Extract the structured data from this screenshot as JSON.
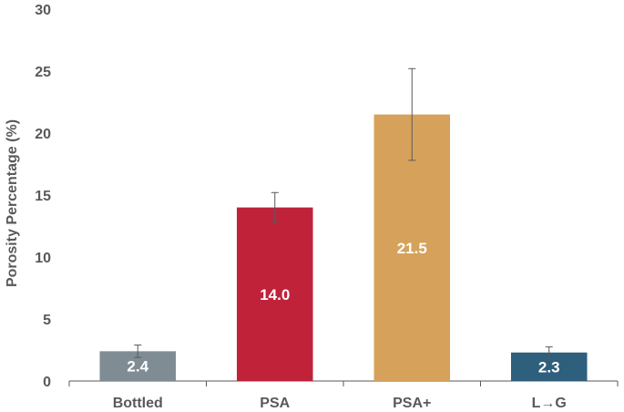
{
  "chart_data": {
    "type": "bar",
    "title": "",
    "xlabel": "",
    "ylabel": "Porosity Percentage (%)",
    "ylim": [
      0,
      30
    ],
    "yticks": [
      0,
      5,
      10,
      15,
      20,
      25,
      30
    ],
    "categories": [
      "Bottled",
      "PSA",
      "PSA+",
      "L→G"
    ],
    "values": [
      2.4,
      14.0,
      21.5,
      2.3
    ],
    "data_labels": [
      "2.4",
      "14.0",
      "21.5",
      "2.3"
    ],
    "error_bars": [
      0.5,
      1.2,
      3.7,
      0.45
    ],
    "colors": [
      "#7f8c93",
      "#c0223a",
      "#d6a25b",
      "#2e5f7d"
    ],
    "grid": false,
    "legend": "none"
  }
}
